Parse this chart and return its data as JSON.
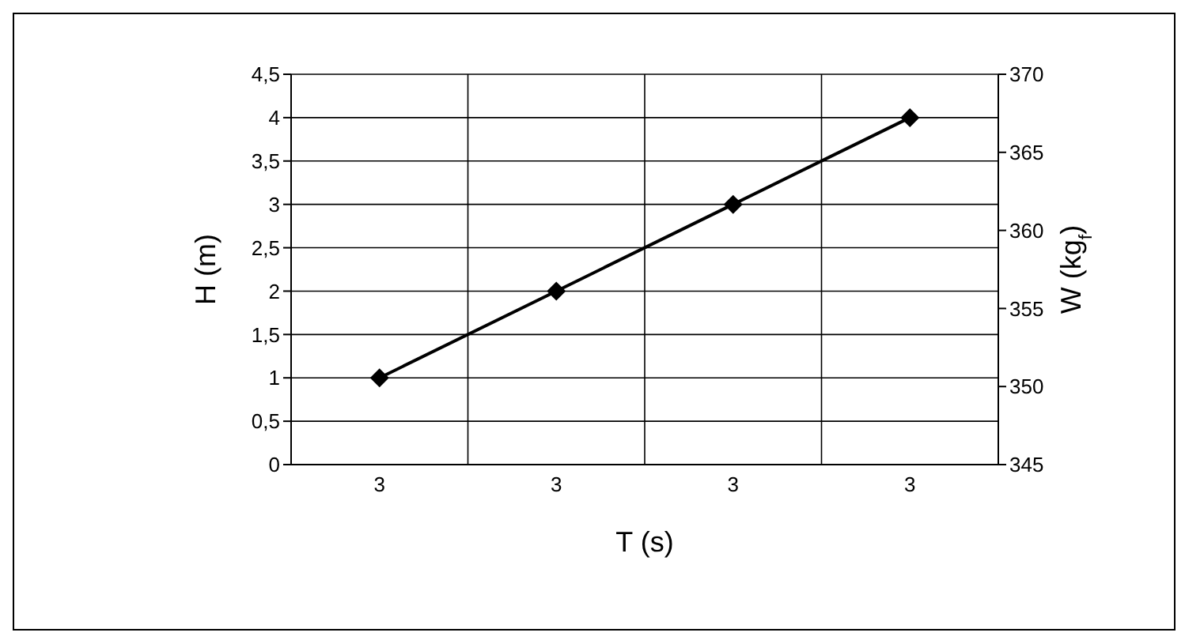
{
  "chart_data": {
    "type": "line",
    "xlabel": "T (s)",
    "ylabel": "H (m)",
    "y2label": "W (kg$_{f}$)",
    "categories": [
      "3",
      "3",
      "3",
      "3"
    ],
    "series": [
      {
        "color": "#000000",
        "values": [
          1,
          2,
          3,
          4
        ]
      }
    ],
    "ylim": [
      0,
      4.5
    ],
    "yticks": [
      0,
      {
        "value": 0.5,
        "label": "0,5"
      },
      1,
      {
        "value": 1.5,
        "label": "1,5"
      },
      2,
      {
        "value": 2.5,
        "label": "2,5"
      },
      3,
      {
        "value": 3.5,
        "label": "3,5"
      },
      4,
      {
        "value": 4.5,
        "label": "4,5"
      }
    ],
    "y2lim": [
      345,
      370
    ],
    "y2ticks": [
      345,
      350,
      355,
      360,
      365,
      370
    ],
    "grid": true,
    "marker": "diamond",
    "line_style": "solid"
  }
}
